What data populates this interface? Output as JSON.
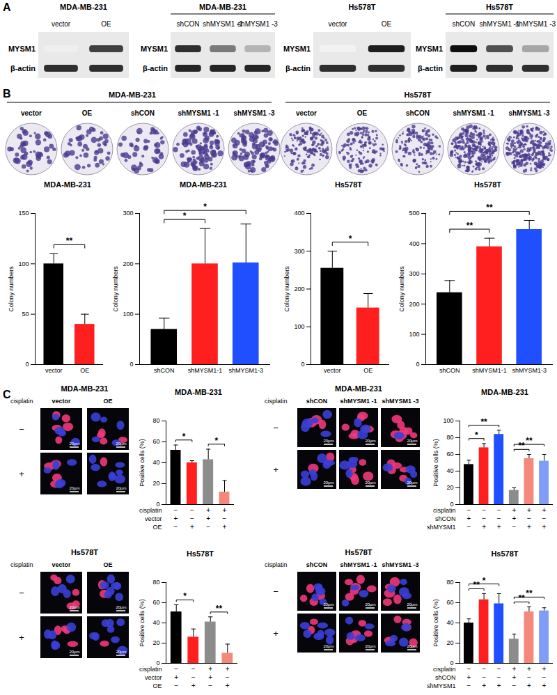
{
  "panel_labels": [
    "A",
    "B",
    "C"
  ],
  "blots": [
    {
      "title": "MDA-MB-231",
      "lanes": [
        "vector",
        "OE"
      ],
      "rows": [
        {
          "label": "MYSM1",
          "intensity": [
            0.12,
            0.8
          ]
        },
        {
          "label": "β-actin",
          "intensity": [
            0.85,
            0.85
          ]
        }
      ]
    },
    {
      "title": "MDA-MB-231",
      "lanes": [
        "shCON",
        "shMYSM1 -1",
        "shMYSM1 -3"
      ],
      "rows": [
        {
          "label": "MYSM1",
          "intensity": [
            0.85,
            0.6,
            0.4
          ]
        },
        {
          "label": "β-actin",
          "intensity": [
            0.88,
            0.88,
            0.88
          ]
        }
      ]
    },
    {
      "title": "Hs578T",
      "lanes": [
        "vector",
        "OE"
      ],
      "rows": [
        {
          "label": "MYSM1",
          "intensity": [
            0.1,
            0.9
          ]
        },
        {
          "label": "β-actin",
          "intensity": [
            0.85,
            0.85
          ]
        }
      ]
    },
    {
      "title": "Hs578T",
      "lanes": [
        "shCON",
        "shMYSM1 -1",
        "shMYSM1 -3"
      ],
      "rows": [
        {
          "label": "MYSM1",
          "intensity": [
            0.95,
            0.75,
            0.45
          ]
        },
        {
          "label": "β-actin",
          "intensity": [
            0.9,
            0.85,
            0.85
          ]
        }
      ]
    }
  ],
  "colony_images": [
    {
      "title": "MDA-MB-231",
      "plates": [
        "vector",
        "OE",
        "shCON",
        "shMYSM1 -1",
        "shMYSM1 -3"
      ]
    },
    {
      "title": "Hs578T",
      "plates": [
        "vector",
        "OE",
        "shCON",
        "shMYSM1 -1",
        "shMYSM1 -3"
      ]
    }
  ],
  "if_images": [
    {
      "title": "MDA-MB-231",
      "row_label": "cisplatin",
      "rows": [
        "−",
        "+"
      ],
      "columns": [
        "vector",
        "OE"
      ],
      "scale_bar": "20μm"
    },
    {
      "title": "MDA-MB-231",
      "row_label": "cisplatin",
      "rows": [
        "−",
        "+"
      ],
      "columns": [
        "shCON",
        "shMYSM1 -1",
        "shMYSM1 -3"
      ],
      "scale_bar": "20μm"
    },
    {
      "title": "Hs578T",
      "row_label": "cisplatin",
      "rows": [
        "−",
        "+"
      ],
      "columns": [
        "vector",
        "OE"
      ],
      "scale_bar": "20μm"
    },
    {
      "title": "Hs578T",
      "row_label": "cisplatin",
      "rows": [
        "−",
        "+"
      ],
      "columns": [
        "shCON",
        "shMYSM1 -1",
        "shMYSM1 -3"
      ],
      "scale_bar": "20μm"
    }
  ],
  "chart_data": [
    {
      "type": "bar",
      "title": "MDA-MB-231",
      "y_label": "Colony numbers",
      "categories": [
        "vector",
        "OE"
      ],
      "values": [
        100,
        40
      ],
      "errors": [
        10,
        10
      ],
      "colors": [
        "#000000",
        "#ff1f1f"
      ],
      "ylim": [
        0,
        150
      ],
      "yticks": [
        0,
        50,
        100,
        150
      ],
      "significance": [
        {
          "pair": [
            0,
            1
          ],
          "label": "**"
        }
      ]
    },
    {
      "type": "bar",
      "title": "MDA-MB-231",
      "y_label": "Colony numbers",
      "categories": [
        "shCON",
        "shMYSM1-1",
        "shMYSM1-3"
      ],
      "values": [
        70,
        200,
        202
      ],
      "errors": [
        22,
        70,
        77
      ],
      "colors": [
        "#000000",
        "#ff1f1f",
        "#1f4fff"
      ],
      "ylim": [
        0,
        300
      ],
      "yticks": [
        0,
        100,
        200,
        300
      ],
      "significance": [
        {
          "pair": [
            0,
            1
          ],
          "label": "*"
        },
        {
          "pair": [
            0,
            2
          ],
          "label": "*"
        }
      ]
    },
    {
      "type": "bar",
      "title": "Hs578T",
      "y_label": "Colony numbers",
      "categories": [
        "vector",
        "OE"
      ],
      "values": [
        255,
        150
      ],
      "errors": [
        45,
        38
      ],
      "colors": [
        "#000000",
        "#ff1f1f"
      ],
      "ylim": [
        0,
        400
      ],
      "yticks": [
        0,
        100,
        200,
        300,
        400
      ],
      "significance": [
        {
          "pair": [
            0,
            1
          ],
          "label": "*"
        }
      ]
    },
    {
      "type": "bar",
      "title": "Hs578T",
      "y_label": "Colony numbers",
      "categories": [
        "shCON",
        "shMYSM1-1",
        "shMYSM1-3"
      ],
      "values": [
        238,
        390,
        447
      ],
      "errors": [
        40,
        28,
        30
      ],
      "colors": [
        "#000000",
        "#ff1f1f",
        "#1f4fff"
      ],
      "ylim": [
        0,
        500
      ],
      "yticks": [
        0,
        100,
        200,
        300,
        400,
        500
      ],
      "significance": [
        {
          "pair": [
            0,
            1
          ],
          "label": "**"
        },
        {
          "pair": [
            0,
            2
          ],
          "label": "**"
        }
      ]
    },
    {
      "type": "bar",
      "title": "MDA-MB-231",
      "y_label": "Positive cells (%)",
      "categories": [
        null,
        null,
        null,
        null
      ],
      "values": [
        52,
        40,
        43,
        12
      ],
      "errors": [
        5,
        2,
        10,
        11
      ],
      "colors": [
        "#000000",
        "#ff1f1f",
        "#8c8c8c",
        "#f4897b"
      ],
      "ylim": [
        0,
        80
      ],
      "yticks": [
        0,
        20,
        40,
        60,
        80
      ],
      "conditions": [
        {
          "label": "cisplatin",
          "signs": [
            "−",
            "−",
            "+",
            "+"
          ]
        },
        {
          "label": "vector",
          "signs": [
            "+",
            "−",
            "+",
            "−"
          ]
        },
        {
          "label": "OE",
          "signs": [
            "−",
            "+",
            "−",
            "+"
          ]
        }
      ],
      "significance": [
        {
          "pair": [
            0,
            1
          ],
          "label": "*"
        },
        {
          "pair": [
            2,
            3
          ],
          "label": "*"
        }
      ]
    },
    {
      "type": "bar",
      "title": "MDA-MB-231",
      "y_label": "Positive cells (%)",
      "categories": [
        null,
        null,
        null,
        null,
        null,
        null
      ],
      "values": [
        48,
        68,
        84,
        17,
        55,
        52
      ],
      "errors": [
        5,
        5,
        5,
        3,
        5,
        8
      ],
      "colors": [
        "#000000",
        "#ff1f1f",
        "#1f4fff",
        "#8c8c8c",
        "#f4897b",
        "#7f9cf7"
      ],
      "ylim": [
        0,
        100
      ],
      "yticks": [
        0,
        20,
        40,
        60,
        80,
        100
      ],
      "conditions": [
        {
          "label": "cisplatin",
          "signs": [
            "−",
            "−",
            "−",
            "+",
            "+",
            "+"
          ]
        },
        {
          "label": "shCON",
          "signs": [
            "+",
            "−",
            "−",
            "+",
            "−",
            "−"
          ]
        },
        {
          "label": "shMYSM1",
          "signs": [
            "−",
            "+",
            "+",
            "−",
            "+",
            "+"
          ]
        }
      ],
      "significance": [
        {
          "pair": [
            0,
            1
          ],
          "label": "*"
        },
        {
          "pair": [
            0,
            2
          ],
          "label": "**"
        },
        {
          "pair": [
            3,
            4
          ],
          "label": "**"
        },
        {
          "pair": [
            3,
            5
          ],
          "label": "**"
        }
      ]
    },
    {
      "type": "bar",
      "title": "Hs578T",
      "y_label": "Positive cells (%)",
      "categories": [
        null,
        null,
        null,
        null
      ],
      "values": [
        51,
        26,
        41,
        10
      ],
      "errors": [
        7,
        8,
        5,
        9
      ],
      "colors": [
        "#000000",
        "#ff1f1f",
        "#8c8c8c",
        "#f4897b"
      ],
      "ylim": [
        0,
        80
      ],
      "yticks": [
        0,
        20,
        40,
        60,
        80
      ],
      "conditions": [
        {
          "label": "cisplatin",
          "signs": [
            "−",
            "−",
            "+",
            "+"
          ]
        },
        {
          "label": "vector",
          "signs": [
            "+",
            "−",
            "+",
            "−"
          ]
        },
        {
          "label": "OE",
          "signs": [
            "−",
            "+",
            "−",
            "+"
          ]
        }
      ],
      "significance": [
        {
          "pair": [
            0,
            1
          ],
          "label": "*"
        },
        {
          "pair": [
            2,
            3
          ],
          "label": "**"
        }
      ]
    },
    {
      "type": "bar",
      "title": "Hs578T",
      "y_label": "Positive cells (%)",
      "categories": [
        null,
        null,
        null,
        null,
        null,
        null
      ],
      "values": [
        40,
        63,
        59,
        24,
        51,
        52
      ],
      "errors": [
        4,
        6,
        10,
        5,
        5,
        3
      ],
      "colors": [
        "#000000",
        "#ff1f1f",
        "#1f4fff",
        "#8c8c8c",
        "#f4897b",
        "#7f9cf7"
      ],
      "ylim": [
        0,
        80
      ],
      "yticks": [
        0,
        20,
        40,
        60,
        80
      ],
      "conditions": [
        {
          "label": "cisplatin",
          "signs": [
            "−",
            "−",
            "−",
            "+",
            "+",
            "+"
          ]
        },
        {
          "label": "shCON",
          "signs": [
            "+",
            "−",
            "−",
            "+",
            "−",
            "−"
          ]
        },
        {
          "label": "shMYSM1",
          "signs": [
            "−",
            "+",
            "+",
            "−",
            "+",
            "+"
          ]
        }
      ],
      "significance": [
        {
          "pair": [
            0,
            1
          ],
          "label": "**"
        },
        {
          "pair": [
            0,
            2
          ],
          "label": "*"
        },
        {
          "pair": [
            3,
            4
          ],
          "label": "**"
        },
        {
          "pair": [
            3,
            5
          ],
          "label": "**"
        }
      ]
    }
  ]
}
